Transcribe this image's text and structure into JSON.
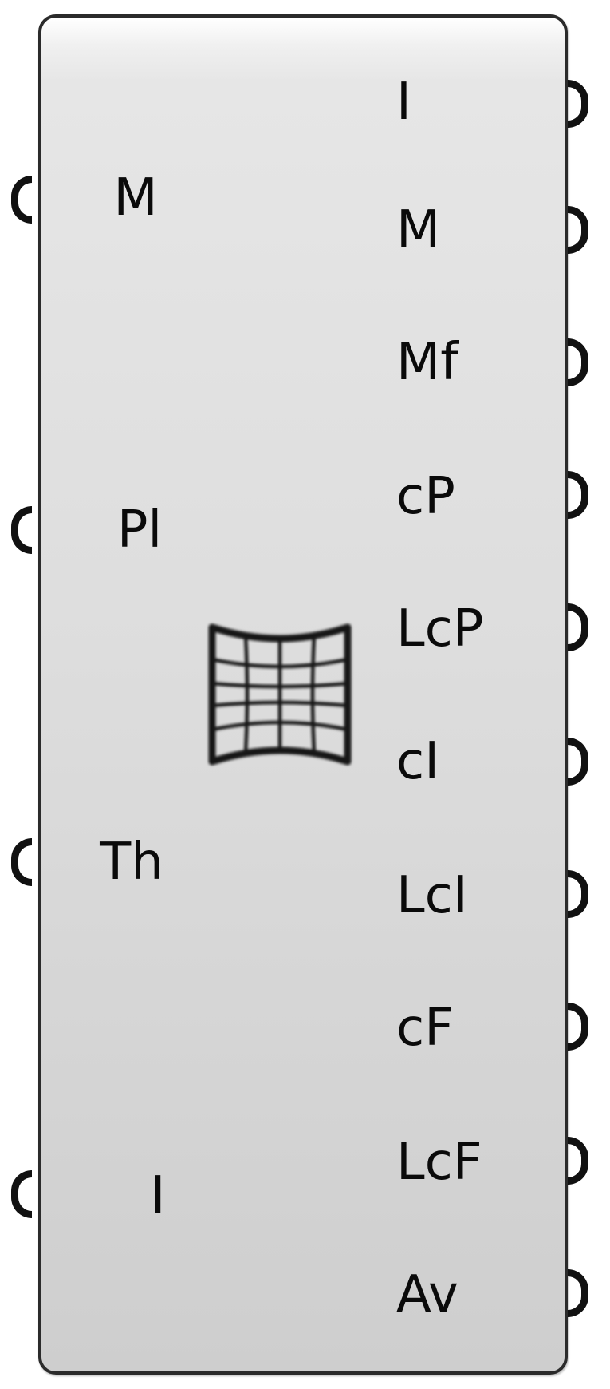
{
  "component": {
    "icon": "mesh-grid-icon",
    "inputs": [
      {
        "label": "M"
      },
      {
        "label": "Pl"
      },
      {
        "label": "Th"
      },
      {
        "label": "I"
      }
    ],
    "outputs": [
      {
        "label": "I"
      },
      {
        "label": "M"
      },
      {
        "label": "Mf"
      },
      {
        "label": "cP"
      },
      {
        "label": "LcP"
      },
      {
        "label": "cI"
      },
      {
        "label": "LcI"
      },
      {
        "label": "cF"
      },
      {
        "label": "LcF"
      },
      {
        "label": "Av"
      }
    ]
  },
  "colors": {
    "border": "#2b2b2b",
    "body_top": "#f0f0f0",
    "body_bottom": "#cecece",
    "text": "#0a0a0a",
    "grip": "#111111"
  }
}
